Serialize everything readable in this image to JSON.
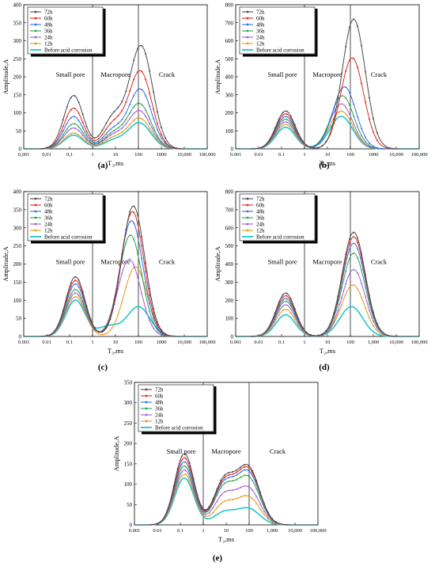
{
  "figure": {
    "legend_labels": [
      "72h",
      "60h",
      "48h",
      "36h",
      "24h",
      "12h",
      "Before acid corrosion"
    ],
    "series_colors": [
      "#4a4a4a",
      "#e8261f",
      "#2f6fe0",
      "#2aa24a",
      "#a55bd6",
      "#e39a1d",
      "#21c7cf"
    ],
    "region_labels": {
      "small": "Small pore",
      "macro": "Macropore",
      "crack": "Crack"
    },
    "xlabel": "T₂,ms",
    "ylabel": "Amplitude,A",
    "x_tick_labels": [
      "0.001",
      "0.01",
      "0.1",
      "1",
      "10",
      "100",
      "1,000",
      "10,000",
      "100,000"
    ]
  },
  "chart_data": [
    {
      "type": "line",
      "panel": "(a)",
      "xscale": "log",
      "xlim": [
        0.001,
        100000
      ],
      "ylim": [
        0,
        400
      ],
      "yticks": [
        0,
        50,
        100,
        150,
        200,
        250,
        300,
        350,
        400
      ],
      "x_tick_labels": [
        "0,001",
        "0,01",
        "0,1",
        "1",
        "10",
        "100",
        "1000",
        "10,000",
        "100,000"
      ],
      "xlabel": "T₂,ms",
      "ylabel": "Amplitude,A",
      "dividers": [
        1,
        100
      ],
      "series": [
        {
          "name": "72h",
          "peaks": [
            {
              "x": 0.15,
              "y": 148
            },
            {
              "x": 8,
              "y": 85
            },
            {
              "x": 130,
              "y": 285
            }
          ],
          "trough": 22
        },
        {
          "name": "60h",
          "peaks": [
            {
              "x": 0.15,
              "y": 113
            },
            {
              "x": 8,
              "y": 65
            },
            {
              "x": 120,
              "y": 215
            }
          ],
          "trough": 16
        },
        {
          "name": "48h",
          "peaks": [
            {
              "x": 0.15,
              "y": 90
            },
            {
              "x": 8,
              "y": 50
            },
            {
              "x": 120,
              "y": 165
            }
          ],
          "trough": 14
        },
        {
          "name": "36h",
          "peaks": [
            {
              "x": 0.15,
              "y": 70
            },
            {
              "x": 8,
              "y": 40
            },
            {
              "x": 110,
              "y": 125
            }
          ],
          "trough": 12
        },
        {
          "name": "24h",
          "peaks": [
            {
              "x": 0.15,
              "y": 58
            },
            {
              "x": 8,
              "y": 35
            },
            {
              "x": 110,
              "y": 105
            }
          ],
          "trough": 11
        },
        {
          "name": "12h",
          "peaks": [
            {
              "x": 0.15,
              "y": 44
            },
            {
              "x": 8,
              "y": 28
            },
            {
              "x": 110,
              "y": 85
            }
          ],
          "trough": 10
        },
        {
          "name": "Before acid corrosion",
          "peaks": [
            {
              "x": 0.15,
              "y": 38
            },
            {
              "x": 8,
              "y": 22
            },
            {
              "x": 110,
              "y": 72
            }
          ],
          "trough": 9
        }
      ]
    },
    {
      "type": "line",
      "panel": "(b)",
      "xscale": "log",
      "xlim": [
        0.001,
        100000
      ],
      "ylim": [
        0,
        800
      ],
      "yticks": [
        0,
        100,
        200,
        300,
        400,
        500,
        600,
        700,
        800
      ],
      "x_tick_labels": [
        "0.001",
        "0.01",
        "0.1",
        "1",
        "10",
        "100",
        "1000",
        "10,000",
        "100,000"
      ],
      "xlabel": "T₂,ms",
      "ylabel": "Amplitude,A",
      "dividers": [
        1,
        100
      ],
      "series": [
        {
          "name": "72h",
          "peaks": [
            {
              "x": 0.15,
              "y": 210
            },
            {
              "x": 140,
              "y": 720
            }
          ],
          "trough": 18
        },
        {
          "name": "60h",
          "peaks": [
            {
              "x": 0.15,
              "y": 195
            },
            {
              "x": 120,
              "y": 505
            }
          ],
          "trough": 16
        },
        {
          "name": "48h",
          "peaks": [
            {
              "x": 0.15,
              "y": 180
            },
            {
              "x": 55,
              "y": 345
            }
          ],
          "trough": 15
        },
        {
          "name": "36h",
          "peaks": [
            {
              "x": 0.15,
              "y": 165
            },
            {
              "x": 45,
              "y": 295
            }
          ],
          "trough": 14
        },
        {
          "name": "24h",
          "peaks": [
            {
              "x": 0.15,
              "y": 150
            },
            {
              "x": 40,
              "y": 250
            }
          ],
          "trough": 13
        },
        {
          "name": "12h",
          "peaks": [
            {
              "x": 0.15,
              "y": 135
            },
            {
              "x": 40,
              "y": 210
            }
          ],
          "trough": 12
        },
        {
          "name": "Before acid corrosion",
          "peaks": [
            {
              "x": 0.15,
              "y": 120
            },
            {
              "x": 40,
              "y": 180
            }
          ],
          "trough": 11
        }
      ]
    },
    {
      "type": "line",
      "panel": "(c)",
      "xscale": "log",
      "xlim": [
        0.001,
        100000
      ],
      "ylim": [
        0,
        400
      ],
      "yticks": [
        0,
        50,
        100,
        150,
        200,
        250,
        300,
        350,
        400
      ],
      "x_tick_labels": [
        "0.001",
        "0.01",
        "0.1",
        "1",
        "10",
        "100",
        "1000",
        "10,000",
        "100,000"
      ],
      "xlabel": "T₂,ms",
      "ylabel": "Amplitude,A",
      "dividers": [
        1,
        100
      ],
      "series": [
        {
          "name": "72h",
          "peaks": [
            {
              "x": 0.18,
              "y": 165
            },
            {
              "x": 60,
              "y": 360
            }
          ],
          "trough": 35
        },
        {
          "name": "60h",
          "peaks": [
            {
              "x": 0.18,
              "y": 155
            },
            {
              "x": 55,
              "y": 345
            }
          ],
          "trough": 33
        },
        {
          "name": "48h",
          "peaks": [
            {
              "x": 0.18,
              "y": 145
            },
            {
              "x": 50,
              "y": 320
            }
          ],
          "trough": 31
        },
        {
          "name": "36h",
          "peaks": [
            {
              "x": 0.18,
              "y": 130
            },
            {
              "x": 45,
              "y": 280
            }
          ],
          "trough": 29
        },
        {
          "name": "24h",
          "peaks": [
            {
              "x": 0.18,
              "y": 120
            },
            {
              "x": 40,
              "y": 213
            }
          ],
          "trough": 27
        },
        {
          "name": "12h",
          "peaks": [
            {
              "x": 0.18,
              "y": 110
            },
            {
              "x": 75,
              "y": 192
            }
          ],
          "trough": 20
        },
        {
          "name": "Before acid corrosion",
          "peaks": [
            {
              "x": 0.18,
              "y": 100
            },
            {
              "x": 5,
              "y": 28
            },
            {
              "x": 100,
              "y": 82
            }
          ],
          "trough": 12
        }
      ]
    },
    {
      "type": "line",
      "panel": "(d)",
      "xscale": "log",
      "xlim": [
        0.001,
        100000
      ],
      "ylim": [
        0,
        800
      ],
      "yticks": [
        0,
        100,
        200,
        300,
        400,
        500,
        600,
        700,
        800
      ],
      "x_tick_labels": [
        "0.001",
        "0.01",
        "0.1",
        "1",
        "10",
        "100",
        "1,000",
        "10,000",
        "100,000"
      ],
      "xlabel": "T₂,ms",
      "ylabel": "Amplitude,A",
      "dividers": [
        1,
        100
      ],
      "series": [
        {
          "name": "72h",
          "peaks": [
            {
              "x": 0.15,
              "y": 240
            },
            {
              "x": 140,
              "y": 575
            }
          ],
          "trough": 18
        },
        {
          "name": "60h",
          "peaks": [
            {
              "x": 0.15,
              "y": 225
            },
            {
              "x": 140,
              "y": 550
            }
          ],
          "trough": 17
        },
        {
          "name": "48h",
          "peaks": [
            {
              "x": 0.15,
              "y": 210
            },
            {
              "x": 140,
              "y": 515
            }
          ],
          "trough": 16
        },
        {
          "name": "36h",
          "peaks": [
            {
              "x": 0.15,
              "y": 195
            },
            {
              "x": 140,
              "y": 460
            }
          ],
          "trough": 15
        },
        {
          "name": "24h",
          "peaks": [
            {
              "x": 0.15,
              "y": 175
            },
            {
              "x": 140,
              "y": 370
            }
          ],
          "trough": 14
        },
        {
          "name": "12h",
          "peaks": [
            {
              "x": 0.15,
              "y": 150
            },
            {
              "x": 130,
              "y": 285
            }
          ],
          "trough": 13
        },
        {
          "name": "Before acid corrosion",
          "peaks": [
            {
              "x": 0.15,
              "y": 120
            },
            {
              "x": 110,
              "y": 165
            }
          ],
          "trough": 12
        }
      ]
    },
    {
      "type": "line",
      "panel": "(e)",
      "xscale": "log",
      "xlim": [
        0.001,
        100000
      ],
      "ylim": [
        0,
        350
      ],
      "yticks": [
        0,
        50,
        100,
        150,
        200,
        250,
        300,
        350
      ],
      "x_tick_labels": [
        "0.001",
        "0.01",
        "0.1",
        "1",
        "10",
        "100",
        "1,000",
        "10,000",
        "100,000"
      ],
      "xlabel": "T₂,ms",
      "ylabel": "Amplitude,A",
      "dividers": [
        1,
        100
      ],
      "series": [
        {
          "name": "72h",
          "peaks": [
            {
              "x": 0.15,
              "y": 175
            },
            {
              "x": 8,
              "y": 105
            },
            {
              "x": 90,
              "y": 140
            }
          ],
          "trough": 20
        },
        {
          "name": "60h",
          "peaks": [
            {
              "x": 0.15,
              "y": 165
            },
            {
              "x": 8,
              "y": 100
            },
            {
              "x": 90,
              "y": 135
            }
          ],
          "trough": 19
        },
        {
          "name": "48h",
          "peaks": [
            {
              "x": 0.15,
              "y": 155
            },
            {
              "x": 8,
              "y": 95
            },
            {
              "x": 90,
              "y": 128
            }
          ],
          "trough": 18
        },
        {
          "name": "36h",
          "peaks": [
            {
              "x": 0.15,
              "y": 145
            },
            {
              "x": 8,
              "y": 88
            },
            {
              "x": 90,
              "y": 115
            }
          ],
          "trough": 17
        },
        {
          "name": "24h",
          "peaks": [
            {
              "x": 0.15,
              "y": 135
            },
            {
              "x": 8,
              "y": 70
            },
            {
              "x": 90,
              "y": 90
            }
          ],
          "trough": 16
        },
        {
          "name": "12h",
          "peaks": [
            {
              "x": 0.15,
              "y": 125
            },
            {
              "x": 8,
              "y": 50
            },
            {
              "x": 90,
              "y": 68
            }
          ],
          "trough": 15
        },
        {
          "name": "Before acid corrosion",
          "peaks": [
            {
              "x": 0.15,
              "y": 115
            },
            {
              "x": 8,
              "y": 30
            },
            {
              "x": 90,
              "y": 40
            }
          ],
          "trough": 14
        }
      ]
    }
  ]
}
